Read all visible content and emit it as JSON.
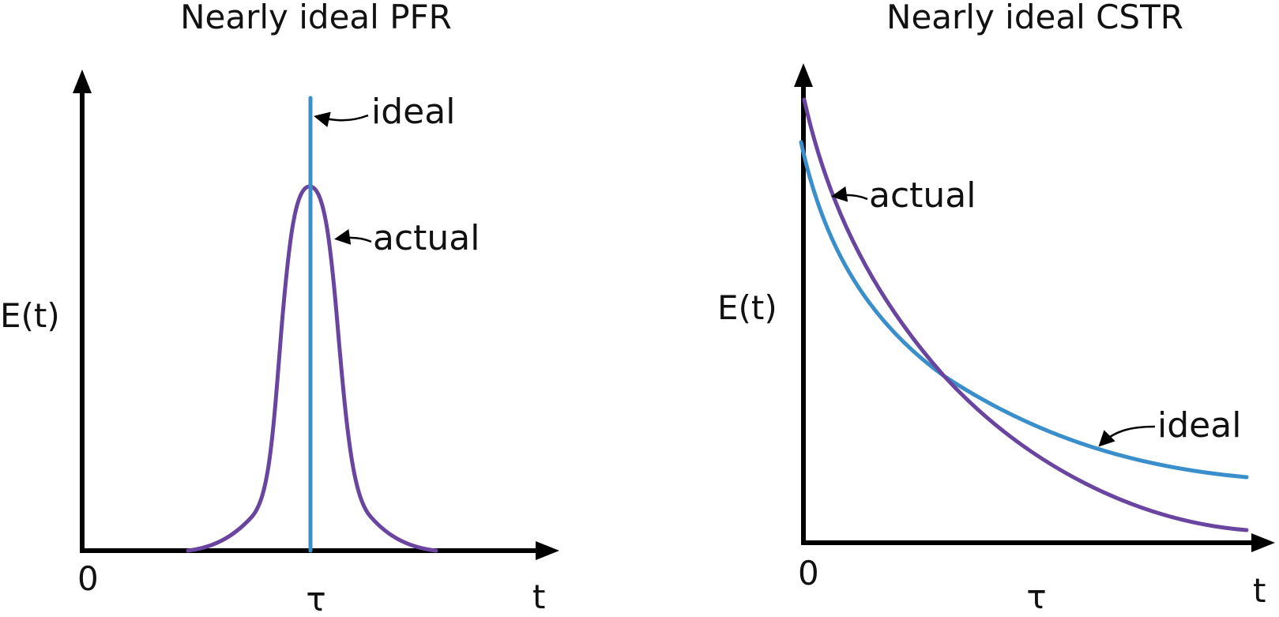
{
  "colors": {
    "ideal": "#3a8fcb",
    "actual": "#6a45a0",
    "axis": "#000000"
  },
  "panels": {
    "pfr": {
      "title": "Nearly ideal PFR",
      "y_axis_label": "E(t)",
      "x_axis_label": "t",
      "origin_label": "0",
      "tau_label": "τ",
      "ideal_label": "ideal",
      "actual_label": "actual"
    },
    "cstr": {
      "title": "Nearly ideal CSTR",
      "y_axis_label": "E(t)",
      "x_axis_label": "t",
      "origin_label": "0",
      "tau_label": "τ",
      "ideal_label": "ideal",
      "actual_label": "actual"
    }
  }
}
